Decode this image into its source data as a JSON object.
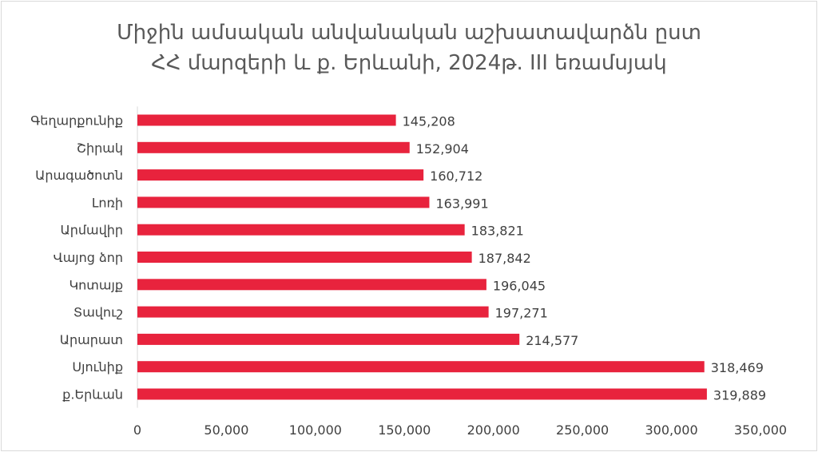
{
  "chart_data": {
    "type": "bar",
    "orientation": "horizontal",
    "title_lines": [
      "Միջին ամսական անվանական աշխատավարձն ըստ",
      "ՀՀ մարզերի և ք. Երևանի, 2024թ. III եռամսյակ"
    ],
    "categories": [
      "Գեղարքունիք",
      "Շիրակ",
      "Արագածոտն",
      "Լոռի",
      "Արմավիր",
      "Վայոց ձոր",
      "Կոտայք",
      "Տավուշ",
      "Արարատ",
      "Սյունիք",
      "ք.Երևան"
    ],
    "values": [
      145208,
      152904,
      160712,
      163991,
      183821,
      187842,
      196045,
      197271,
      214577,
      318469,
      319889
    ],
    "data_labels": [
      "145,208",
      "152,904",
      "160,712",
      "163,991",
      "183,821",
      "187,842",
      "196,045",
      "197,271",
      "214,577",
      "318,469",
      "319,889"
    ],
    "x_ticks": [
      "0",
      "50,000",
      "100,000",
      "150,000",
      "200,000",
      "250,000",
      "300,000",
      "350,000"
    ],
    "xlim": [
      0,
      350000
    ],
    "bar_color": "#E8233D",
    "grid": false,
    "legend": "none"
  }
}
